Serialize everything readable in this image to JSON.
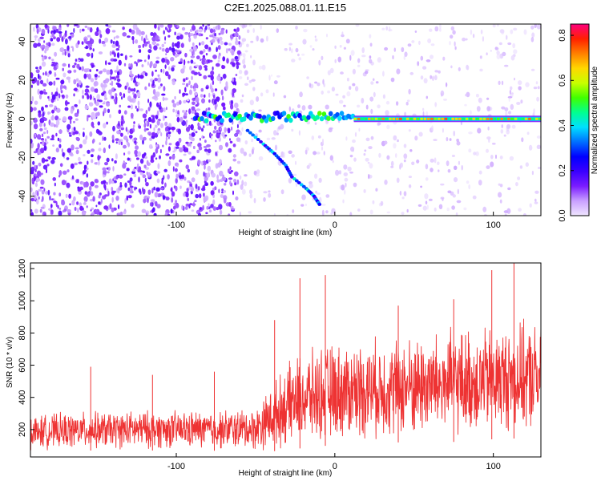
{
  "title": "C2E1.2025.088.01.11.E15",
  "chart_data": [
    {
      "type": "heatmap",
      "name": "spectrogram",
      "xlabel": "Height of straight line (km)",
      "ylabel": "Frequency (Hz)",
      "xlim": [
        -192,
        130
      ],
      "ylim": [
        -50,
        49
      ],
      "xticks": [
        -100,
        0,
        100
      ],
      "xtick_labels": [
        "-100",
        "0",
        "100"
      ],
      "yticks": [
        -40,
        -20,
        0,
        20,
        40
      ],
      "ytick_labels": [
        "-40",
        "-20",
        "0",
        "20",
        "40"
      ],
      "colorbar": {
        "label": "Normalized spectral amplitude",
        "range": [
          0,
          0.85
        ],
        "ticks": [
          0.0,
          0.2,
          0.4,
          0.6,
          0.8
        ],
        "tick_labels": [
          "0.0",
          "0.2",
          "0.4",
          "0.6",
          "0.8"
        ],
        "colormap": [
          "#f0e6ff",
          "#c9a0ff",
          "#7a1cff",
          "#3a00ff",
          "#0000ff",
          "#0070ff",
          "#00e0ff",
          "#00ff90",
          "#40ff00",
          "#c8ff00",
          "#ffd800",
          "#ff8000",
          "#ff2000",
          "#ff007f"
        ]
      },
      "features": {
        "carrier_line": {
          "frequency_hz": 0,
          "x_start": 12,
          "x_end": 130,
          "amplitude": 0.6
        },
        "signal_onset": {
          "x_start": -88,
          "x_end": 12,
          "frequency_hz": 1
        },
        "sideband_trace": {
          "x": [
            -55,
            -45,
            -38,
            -31,
            -27,
            -18,
            -13,
            -9
          ],
          "frequency_hz": [
            -6,
            -13,
            -18,
            -24,
            -30,
            -36,
            -40,
            -45
          ]
        }
      }
    },
    {
      "type": "line",
      "name": "snr",
      "xlabel": "Height of straight line (km)",
      "ylabel": "SNR (10 * v/v)",
      "xlim": [
        -192,
        130
      ],
      "ylim": [
        30,
        1235
      ],
      "xticks": [
        -100,
        0,
        100
      ],
      "xtick_labels": [
        "-100",
        "0",
        "100"
      ],
      "yticks": [
        200,
        400,
        600,
        800,
        1000,
        1200
      ],
      "ytick_labels": [
        "200",
        "400",
        "600",
        "800",
        "1000",
        "1200"
      ],
      "color": "#ee3333",
      "envelope": {
        "x": [
          -192,
          -160,
          -120,
          -80,
          -50,
          -42,
          -35,
          -25,
          -15,
          -5,
          10,
          40,
          70,
          100,
          130
        ],
        "lower": [
          70,
          70,
          70,
          70,
          60,
          60,
          70,
          80,
          90,
          100,
          110,
          120,
          120,
          140,
          150
        ],
        "upper": [
          300,
          320,
          330,
          330,
          350,
          470,
          560,
          680,
          720,
          760,
          780,
          810,
          850,
          880,
          900
        ]
      },
      "peaks": [
        {
          "x": -154,
          "y": 590
        },
        {
          "x": -115,
          "y": 540
        },
        {
          "x": -76,
          "y": 560
        },
        {
          "x": -38,
          "y": 880
        },
        {
          "x": -22,
          "y": 1140
        },
        {
          "x": -6,
          "y": 1160
        },
        {
          "x": 40,
          "y": 970
        },
        {
          "x": 75,
          "y": 1010
        },
        {
          "x": 99,
          "y": 1190
        },
        {
          "x": 113,
          "y": 1235
        }
      ]
    }
  ]
}
